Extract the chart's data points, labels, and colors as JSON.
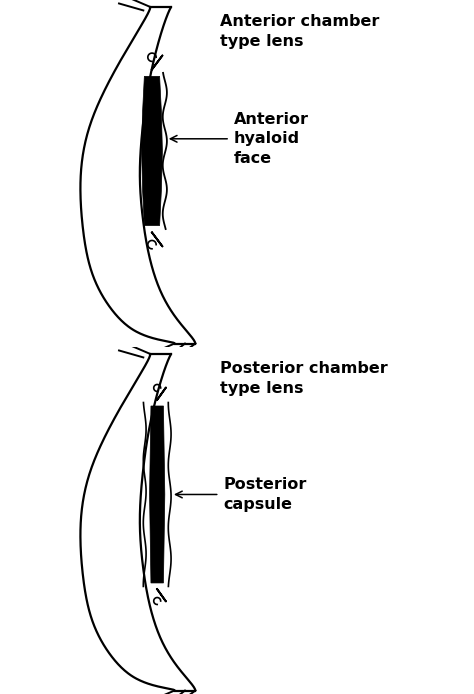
{
  "bg_color": "#ffffff",
  "text_color": "#000000",
  "line_color": "#000000",
  "fig_width": 4.74,
  "fig_height": 6.94,
  "top_title": "Anterior chamber\ntype lens",
  "top_label": "Anterior\nhyaloid\nface",
  "bottom_title": "Posterior chamber\ntype lens",
  "bottom_label": "Posterior\ncapsule",
  "title_fontsize": 11.5,
  "label_fontsize": 11.5,
  "lw": 1.6
}
